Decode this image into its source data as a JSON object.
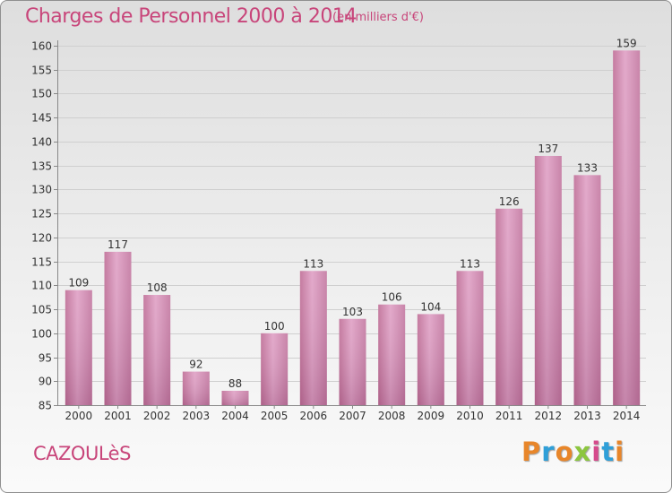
{
  "header": {
    "title": "Charges de Personnel 2000 à 2014",
    "subtitle": "(en milliers d'€)"
  },
  "footer": {
    "place": "CAZOULèS",
    "logo_text": "Proxiti",
    "logo_colors": [
      "#e8862a",
      "#2f9fd8",
      "#e8862a",
      "#8cc63f",
      "#d64a8c",
      "#2f9fd8",
      "#e8862a"
    ]
  },
  "chart_data": {
    "type": "bar",
    "categories": [
      "2000",
      "2001",
      "2002",
      "2003",
      "2004",
      "2005",
      "2006",
      "2007",
      "2008",
      "2009",
      "2010",
      "2011",
      "2012",
      "2013",
      "2014"
    ],
    "values": [
      109,
      117,
      108,
      92,
      88,
      100,
      113,
      103,
      106,
      104,
      113,
      126,
      137,
      133,
      159
    ],
    "ylim": [
      85,
      160
    ],
    "yticks": [
      85,
      90,
      95,
      100,
      105,
      110,
      115,
      120,
      125,
      130,
      135,
      140,
      145,
      150,
      155,
      160
    ],
    "grid": true,
    "bar_color": "#d88ab5"
  }
}
